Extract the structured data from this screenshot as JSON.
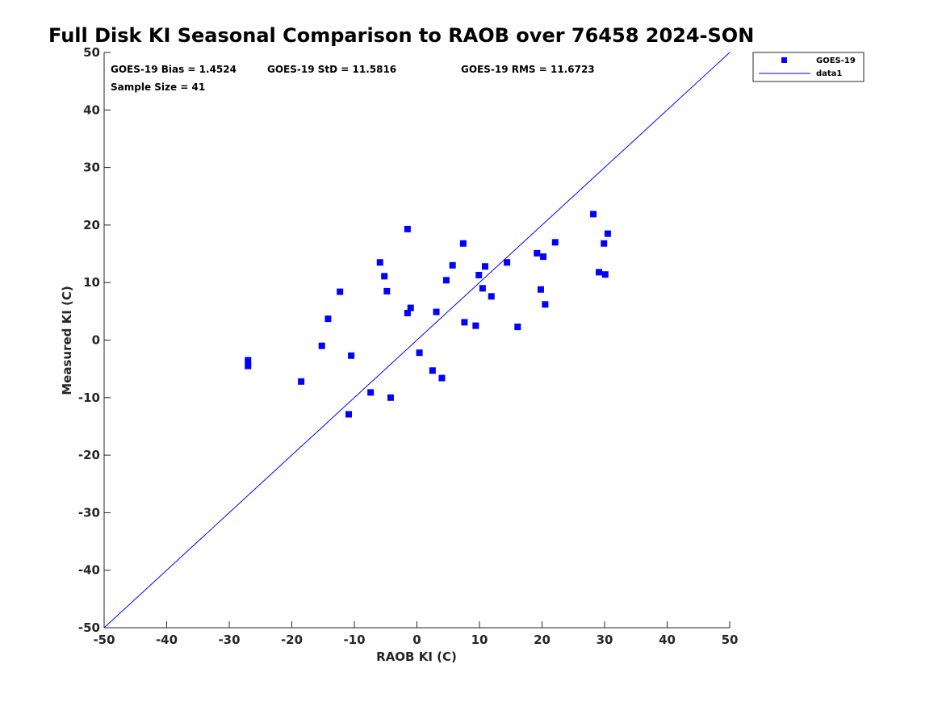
{
  "colors": {
    "series": "#0000ff",
    "line": "#0000ff",
    "axis": "#262626"
  },
  "stats": {
    "bias": "GOES-19 Bias = 1.4524",
    "std": "GOES-19 StD = 11.5816",
    "rms": "GOES-19 RMS = 11.6723",
    "sample": "Sample Size = 41"
  },
  "chart_data": {
    "type": "scatter",
    "title": "Full Disk KI Seasonal Comparison to RAOB over 76458 2024-SON",
    "xlabel": "RAOB KI (C)",
    "ylabel": "Measured KI (C)",
    "xlim": [
      -50,
      50
    ],
    "ylim": [
      -50,
      50
    ],
    "xticks": [
      -50,
      -40,
      -30,
      -20,
      -10,
      0,
      10,
      20,
      30,
      40,
      50
    ],
    "yticks": [
      -50,
      -40,
      -30,
      -20,
      -10,
      0,
      10,
      20,
      30,
      40,
      50
    ],
    "legend": {
      "location": "top-right",
      "entries": [
        "GOES-19",
        "data1"
      ]
    },
    "series": [
      {
        "name": "GOES-19",
        "marker": "square",
        "points": [
          [
            -27.0,
            -3.5
          ],
          [
            -27.0,
            -4.5
          ],
          [
            -18.5,
            -7.2
          ],
          [
            -15.2,
            -1.0
          ],
          [
            -14.2,
            3.7
          ],
          [
            -12.3,
            8.4
          ],
          [
            -10.5,
            -2.7
          ],
          [
            -10.9,
            -12.9
          ],
          [
            -7.4,
            -9.1
          ],
          [
            -5.9,
            13.5
          ],
          [
            -5.2,
            11.1
          ],
          [
            -4.8,
            8.5
          ],
          [
            -4.2,
            -10.0
          ],
          [
            -1.5,
            19.3
          ],
          [
            -1.5,
            4.7
          ],
          [
            -1.0,
            5.6
          ],
          [
            0.4,
            -2.2
          ],
          [
            2.5,
            -5.3
          ],
          [
            3.1,
            4.9
          ],
          [
            4.0,
            -6.6
          ],
          [
            4.7,
            10.4
          ],
          [
            5.7,
            13.0
          ],
          [
            7.4,
            16.8
          ],
          [
            7.6,
            3.1
          ],
          [
            9.4,
            2.5
          ],
          [
            9.9,
            11.3
          ],
          [
            10.5,
            9.0
          ],
          [
            10.9,
            12.8
          ],
          [
            11.9,
            7.6
          ],
          [
            14.4,
            13.5
          ],
          [
            16.1,
            2.3
          ],
          [
            19.2,
            15.1
          ],
          [
            19.8,
            8.8
          ],
          [
            20.2,
            14.5
          ],
          [
            20.5,
            6.2
          ],
          [
            22.1,
            17.0
          ],
          [
            28.2,
            21.9
          ],
          [
            29.1,
            11.8
          ],
          [
            29.9,
            16.8
          ],
          [
            30.1,
            11.4
          ],
          [
            30.5,
            18.5
          ]
        ]
      },
      {
        "name": "data1",
        "type": "line",
        "points": [
          [
            -50,
            -50
          ],
          [
            50,
            50
          ]
        ]
      }
    ]
  }
}
